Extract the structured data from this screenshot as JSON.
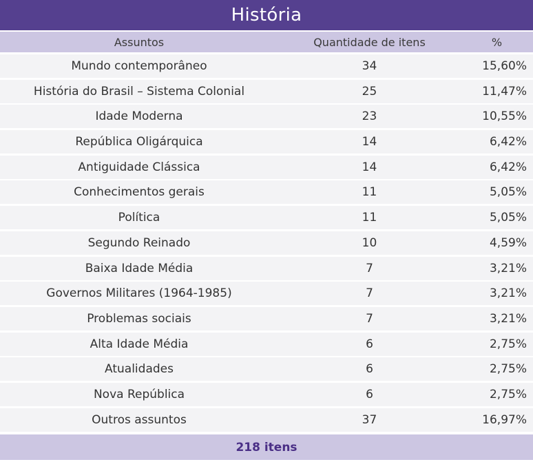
{
  "title": "História",
  "headers": {
    "subject": "Assuntos",
    "quantity": "Quantidade de itens",
    "percent": "%"
  },
  "rows": [
    {
      "subject": "Mundo contemporâneo",
      "quantity": "34",
      "percent": "15,60%"
    },
    {
      "subject": "História do Brasil – Sistema Colonial",
      "quantity": "25",
      "percent": "11,47%"
    },
    {
      "subject": "Idade Moderna",
      "quantity": "23",
      "percent": "10,55%"
    },
    {
      "subject": "República Oligárquica",
      "quantity": "14",
      "percent": "6,42%"
    },
    {
      "subject": "Antiguidade Clássica",
      "quantity": "14",
      "percent": "6,42%"
    },
    {
      "subject": "Conhecimentos gerais",
      "quantity": "11",
      "percent": "5,05%"
    },
    {
      "subject": "Política",
      "quantity": "11",
      "percent": "5,05%"
    },
    {
      "subject": "Segundo Reinado",
      "quantity": "10",
      "percent": "4,59%"
    },
    {
      "subject": "Baixa Idade Média",
      "quantity": "7",
      "percent": "3,21%"
    },
    {
      "subject": "Governos Militares (1964-1985)",
      "quantity": "7",
      "percent": "3,21%"
    },
    {
      "subject": "Problemas sociais",
      "quantity": "7",
      "percent": "3,21%"
    },
    {
      "subject": "Alta Idade Média",
      "quantity": "6",
      "percent": "2,75%"
    },
    {
      "subject": "Atualidades",
      "quantity": "6",
      "percent": "2,75%"
    },
    {
      "subject": "Nova República",
      "quantity": "6",
      "percent": "2,75%"
    },
    {
      "subject": "Outros assuntos",
      "quantity": "37",
      "percent": "16,97%"
    }
  ],
  "footer": "218 itens",
  "colors": {
    "title_bg": "#55408f",
    "header_bg": "#ccc6e2",
    "row_bg": "#f3f3f5",
    "footer_text": "#4a2f86"
  }
}
